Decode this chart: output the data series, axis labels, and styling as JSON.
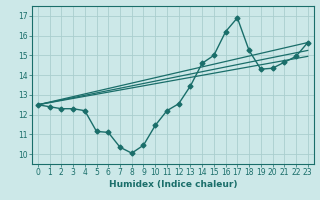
{
  "xlabel": "Humidex (Indice chaleur)",
  "xlim": [
    -0.5,
    23.5
  ],
  "ylim": [
    9.5,
    17.5
  ],
  "yticks": [
    10,
    11,
    12,
    13,
    14,
    15,
    16,
    17
  ],
  "xticks": [
    0,
    1,
    2,
    3,
    4,
    5,
    6,
    7,
    8,
    9,
    10,
    11,
    12,
    13,
    14,
    15,
    16,
    17,
    18,
    19,
    20,
    21,
    22,
    23
  ],
  "bg_color": "#cce8e8",
  "line_color": "#1a6e6a",
  "grid_color": "#aacece",
  "line1_x": [
    0,
    1,
    2,
    3,
    4,
    5,
    6,
    7,
    8,
    9,
    10,
    11,
    12,
    13,
    14,
    15,
    16,
    17,
    18,
    19,
    20,
    21,
    22,
    23
  ],
  "line1_y": [
    12.5,
    12.4,
    12.3,
    12.3,
    12.2,
    11.15,
    11.1,
    10.35,
    10.05,
    10.45,
    11.45,
    12.2,
    12.55,
    13.45,
    14.6,
    15.0,
    16.2,
    16.9,
    15.25,
    14.3,
    14.35,
    14.65,
    14.95,
    15.65
  ],
  "line2_x": [
    0,
    23
  ],
  "line2_y": [
    12.5,
    15.65
  ],
  "line3_x": [
    0,
    23
  ],
  "line3_y": [
    12.5,
    15.25
  ],
  "line4_x": [
    0,
    23
  ],
  "line4_y": [
    12.5,
    14.95
  ]
}
